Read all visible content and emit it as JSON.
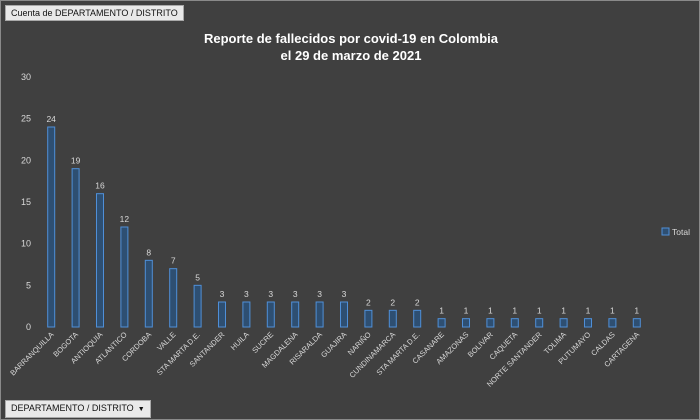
{
  "pivot": {
    "value_field": "Cuenta de DEPARTAMENTO / DISTRITO",
    "axis_field": "DEPARTAMENTO / DISTRITO",
    "axis_dropdown_icon": "dropdown-arrow-icon"
  },
  "colors": {
    "background": "#404040",
    "bar_fill": "#2e4f72",
    "bar_stroke": "#4f8fd8",
    "text": "#d9d9d9"
  },
  "chart_data": {
    "type": "bar",
    "title": [
      "Reporte de fallecidos por covid-19 en Colombia",
      "el 29 de marzo de 2021"
    ],
    "xlabel": "",
    "ylabel": "",
    "ylim": [
      0,
      30
    ],
    "yticks": [
      0,
      5,
      10,
      15,
      20,
      25,
      30
    ],
    "grid": false,
    "legend_position": "right",
    "categories": [
      "BARRANQUILLA",
      "BOGOTA",
      "ANTIOQUIA",
      "ATLANTICO",
      "CORDOBA",
      "VALLE",
      "STA MARTA D.E.",
      "SANTANDER",
      "HUILA",
      "SUCRE",
      "MAGDALENA",
      "RISARALDA",
      "GUAJIRA",
      "NARIÑO",
      "CUNDINAMARCA",
      "STA MARTA D.E.",
      "CASANARE",
      "AMAZONAS",
      "BOLIVAR",
      "CAQUETA",
      "NORTE SANTANDER",
      "TOLIMA",
      "PUTUMAYO",
      "CALDAS",
      "CARTAGENA"
    ],
    "series": [
      {
        "name": "Total",
        "values": [
          24,
          19,
          16,
          12,
          8,
          7,
          5,
          3,
          3,
          3,
          3,
          3,
          3,
          2,
          2,
          2,
          1,
          1,
          1,
          1,
          1,
          1,
          1,
          1,
          1
        ]
      }
    ]
  }
}
